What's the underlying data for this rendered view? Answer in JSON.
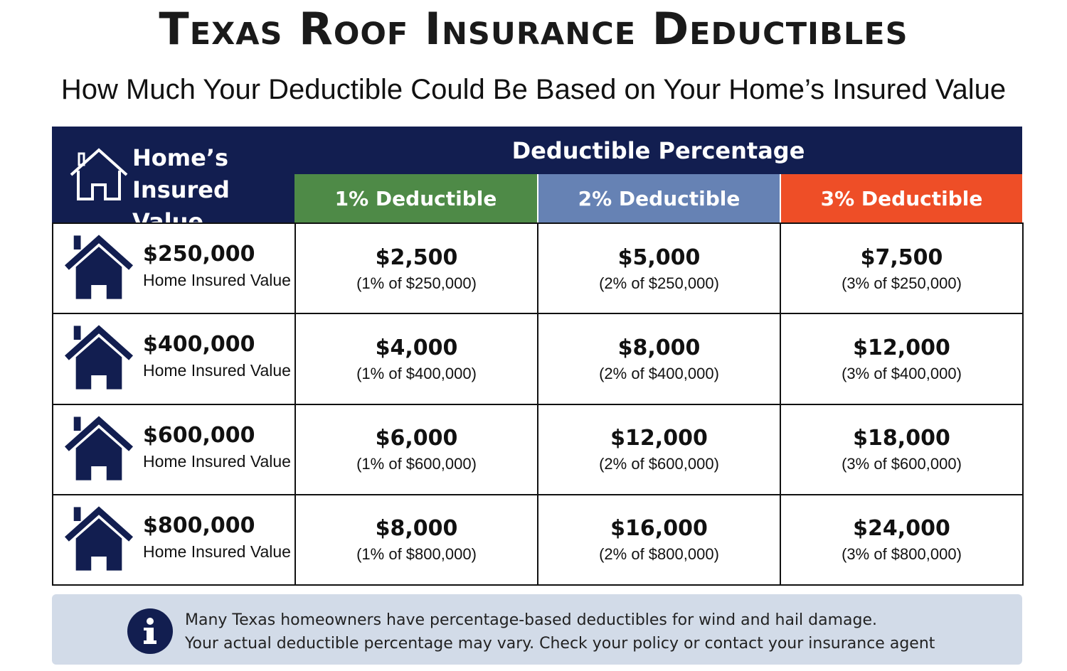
{
  "header": {
    "title": "Texas Roof Insurance Deductibles",
    "subtitle": "How Much Your Deductible Could Be Based on Your Home’s Insured Value"
  },
  "table": {
    "corner": [
      "Home’s",
      "Insured Value"
    ],
    "group_header": "Deductible Percentage",
    "columns": [
      "1% Deductible",
      "2% Deductible",
      "3% Deductible"
    ],
    "rows": [
      {
        "value": "$250,000",
        "label": "Home Insured Value",
        "cells": [
          {
            "amount": "$2,500",
            "note": "(1% of $250,000)"
          },
          {
            "amount": "$5,000",
            "note": "(2% of $250,000)"
          },
          {
            "amount": "$7,500",
            "note": "(3% of $250,000)"
          }
        ]
      },
      {
        "value": "$400,000",
        "label": "Home Insured Value",
        "cells": [
          {
            "amount": "$4,000",
            "note": "(1% of $400,000)"
          },
          {
            "amount": "$8,000",
            "note": "(2% of $400,000)"
          },
          {
            "amount": "$12,000",
            "note": "(3% of $400,000)"
          }
        ]
      },
      {
        "value": "$600,000",
        "label": "Home Insured Value",
        "cells": [
          {
            "amount": "$6,000",
            "note": "(1% of $600,000)"
          },
          {
            "amount": "$12,000",
            "note": "(2% of $600,000)"
          },
          {
            "amount": "$18,000",
            "note": "(3% of $600,000)"
          }
        ]
      },
      {
        "value": "$800,000",
        "label": "Home Insured Value",
        "cells": [
          {
            "amount": "$8,000",
            "note": "(1% of $800,000)"
          },
          {
            "amount": "$16,000",
            "note": "(2% of $800,000)"
          },
          {
            "amount": "$24,000",
            "note": "(3% of $800,000)"
          }
        ]
      }
    ]
  },
  "note": {
    "lines": [
      "Many Texas homeowners have percentage-based deductibles for wind and hail damage.",
      "Your actual deductible percentage may vary. Check your policy or contact your insurance agent"
    ]
  }
}
